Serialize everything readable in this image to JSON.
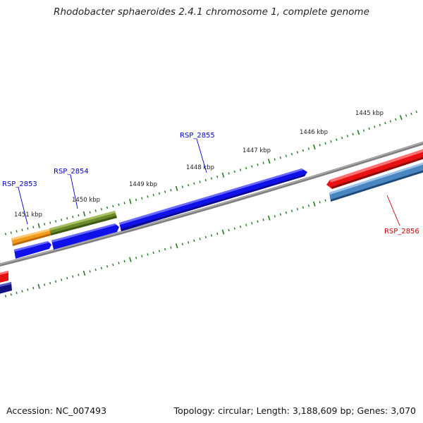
{
  "title": "Rhodobacter sphaeroides 2.4.1 chromosome 1, complete genome",
  "accession_text": "Accession: NC_007493",
  "summary_text": "Topology: circular; Length: 3,188,609 bp; Genes: 3,070",
  "colors": {
    "backbone": "#7f7f7f",
    "tick": "#1f7a1f",
    "gene_blue": "#1010e8",
    "gene_darkblue": "#101080",
    "gene_red": "#e81010",
    "gene_orange": "#f29a1a",
    "gene_olive": "#6b8a2a",
    "gene_steel": "#4a86c0",
    "label_blue": "#0000cc",
    "label_red": "#cc0000"
  },
  "ticks": [
    {
      "label": "1445 kbp"
    },
    {
      "label": "1446 kbp"
    },
    {
      "label": "1447 kbp"
    },
    {
      "label": "1448 kbp"
    },
    {
      "label": "1449 kbp"
    },
    {
      "label": "1450 kbp"
    },
    {
      "label": "1451 kbp"
    }
  ],
  "genes": [
    {
      "name": "RSP_2853",
      "color": "gene_orange"
    },
    {
      "name": "RSP_2854",
      "color": "gene_olive"
    },
    {
      "name": "RSP_2855",
      "color": "gene_blue"
    },
    {
      "name": "RSP_2856",
      "color": "gene_steel"
    }
  ]
}
